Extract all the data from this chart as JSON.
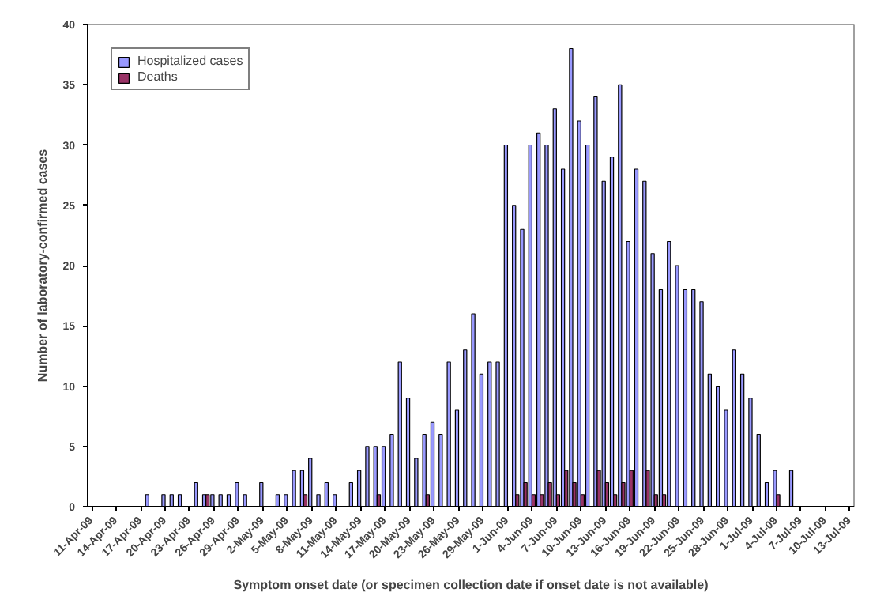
{
  "chart_data": {
    "type": "bar",
    "xlabel": "Symptom onset date (or specimen collection date if onset date is not available)",
    "ylabel": "Number of laboratory-confirmed cases",
    "categories": [
      "11-Apr-09",
      null,
      null,
      "14-Apr-09",
      null,
      null,
      "17-Apr-09",
      null,
      null,
      "20-Apr-09",
      null,
      null,
      "23-Apr-09",
      null,
      null,
      "26-Apr-09",
      null,
      null,
      "29-Apr-09",
      null,
      null,
      "2-May-09",
      null,
      null,
      "5-May-09",
      null,
      null,
      "8-May-09",
      null,
      null,
      "11-May-09",
      null,
      null,
      "14-May-09",
      null,
      null,
      "17-May-09",
      null,
      null,
      "20-May-09",
      null,
      null,
      "23-May-09",
      null,
      null,
      "26-May-09",
      null,
      null,
      "29-May-09",
      null,
      null,
      "1-Jun-09",
      null,
      null,
      "4-Jun-09",
      null,
      null,
      "7-Jun-09",
      null,
      null,
      "10-Jun-09",
      null,
      null,
      "13-Jun-09",
      null,
      null,
      "16-Jun-09",
      null,
      null,
      "19-Jun-09",
      null,
      null,
      "22-Jun-09",
      null,
      null,
      "25-Jun-09",
      null,
      null,
      "28-Jun-09",
      null,
      null,
      "1-Jul-09",
      null,
      null,
      "4-Jul-09",
      null,
      null,
      "7-Jul-09",
      null,
      null,
      "10-Jul-09",
      null,
      null,
      "13-Jul-09"
    ],
    "series": [
      {
        "name": "Hospitalized cases",
        "color": "#9999ff",
        "values": [
          0,
          0,
          0,
          0,
          0,
          0,
          0,
          1,
          0,
          1,
          1,
          1,
          0,
          2,
          1,
          1,
          1,
          1,
          2,
          1,
          0,
          2,
          0,
          1,
          1,
          3,
          3,
          4,
          1,
          2,
          1,
          0,
          2,
          3,
          5,
          5,
          5,
          6,
          12,
          9,
          4,
          6,
          7,
          6,
          12,
          8,
          13,
          16,
          11,
          12,
          12,
          30,
          25,
          23,
          30,
          31,
          30,
          33,
          28,
          38,
          32,
          30,
          34,
          27,
          29,
          35,
          22,
          28,
          27,
          21,
          18,
          22,
          20,
          18,
          18,
          17,
          11,
          10,
          8,
          13,
          11,
          9,
          6,
          2,
          3,
          0,
          3,
          0,
          0,
          0,
          0,
          0,
          0,
          0
        ]
      },
      {
        "name": "Deaths",
        "color": "#993366",
        "values": [
          0,
          0,
          0,
          0,
          0,
          0,
          0,
          0,
          0,
          0,
          0,
          0,
          0,
          0,
          1,
          0,
          0,
          0,
          0,
          0,
          0,
          0,
          0,
          0,
          0,
          0,
          1,
          0,
          0,
          0,
          0,
          0,
          0,
          0,
          0,
          1,
          0,
          0,
          0,
          0,
          0,
          1,
          0,
          0,
          0,
          0,
          0,
          0,
          0,
          0,
          0,
          0,
          1,
          2,
          1,
          1,
          2,
          1,
          3,
          2,
          1,
          0,
          3,
          2,
          1,
          2,
          3,
          0,
          3,
          1,
          1,
          0,
          0,
          0,
          0,
          0,
          0,
          0,
          0,
          0,
          0,
          0,
          0,
          0,
          1,
          0,
          0,
          0,
          0,
          0,
          0,
          0,
          0,
          0
        ]
      }
    ],
    "ylim": [
      0,
      40
    ],
    "yticks": [
      0,
      5,
      10,
      15,
      20,
      25,
      30,
      35,
      40
    ],
    "grid": false,
    "legend": "top left"
  }
}
